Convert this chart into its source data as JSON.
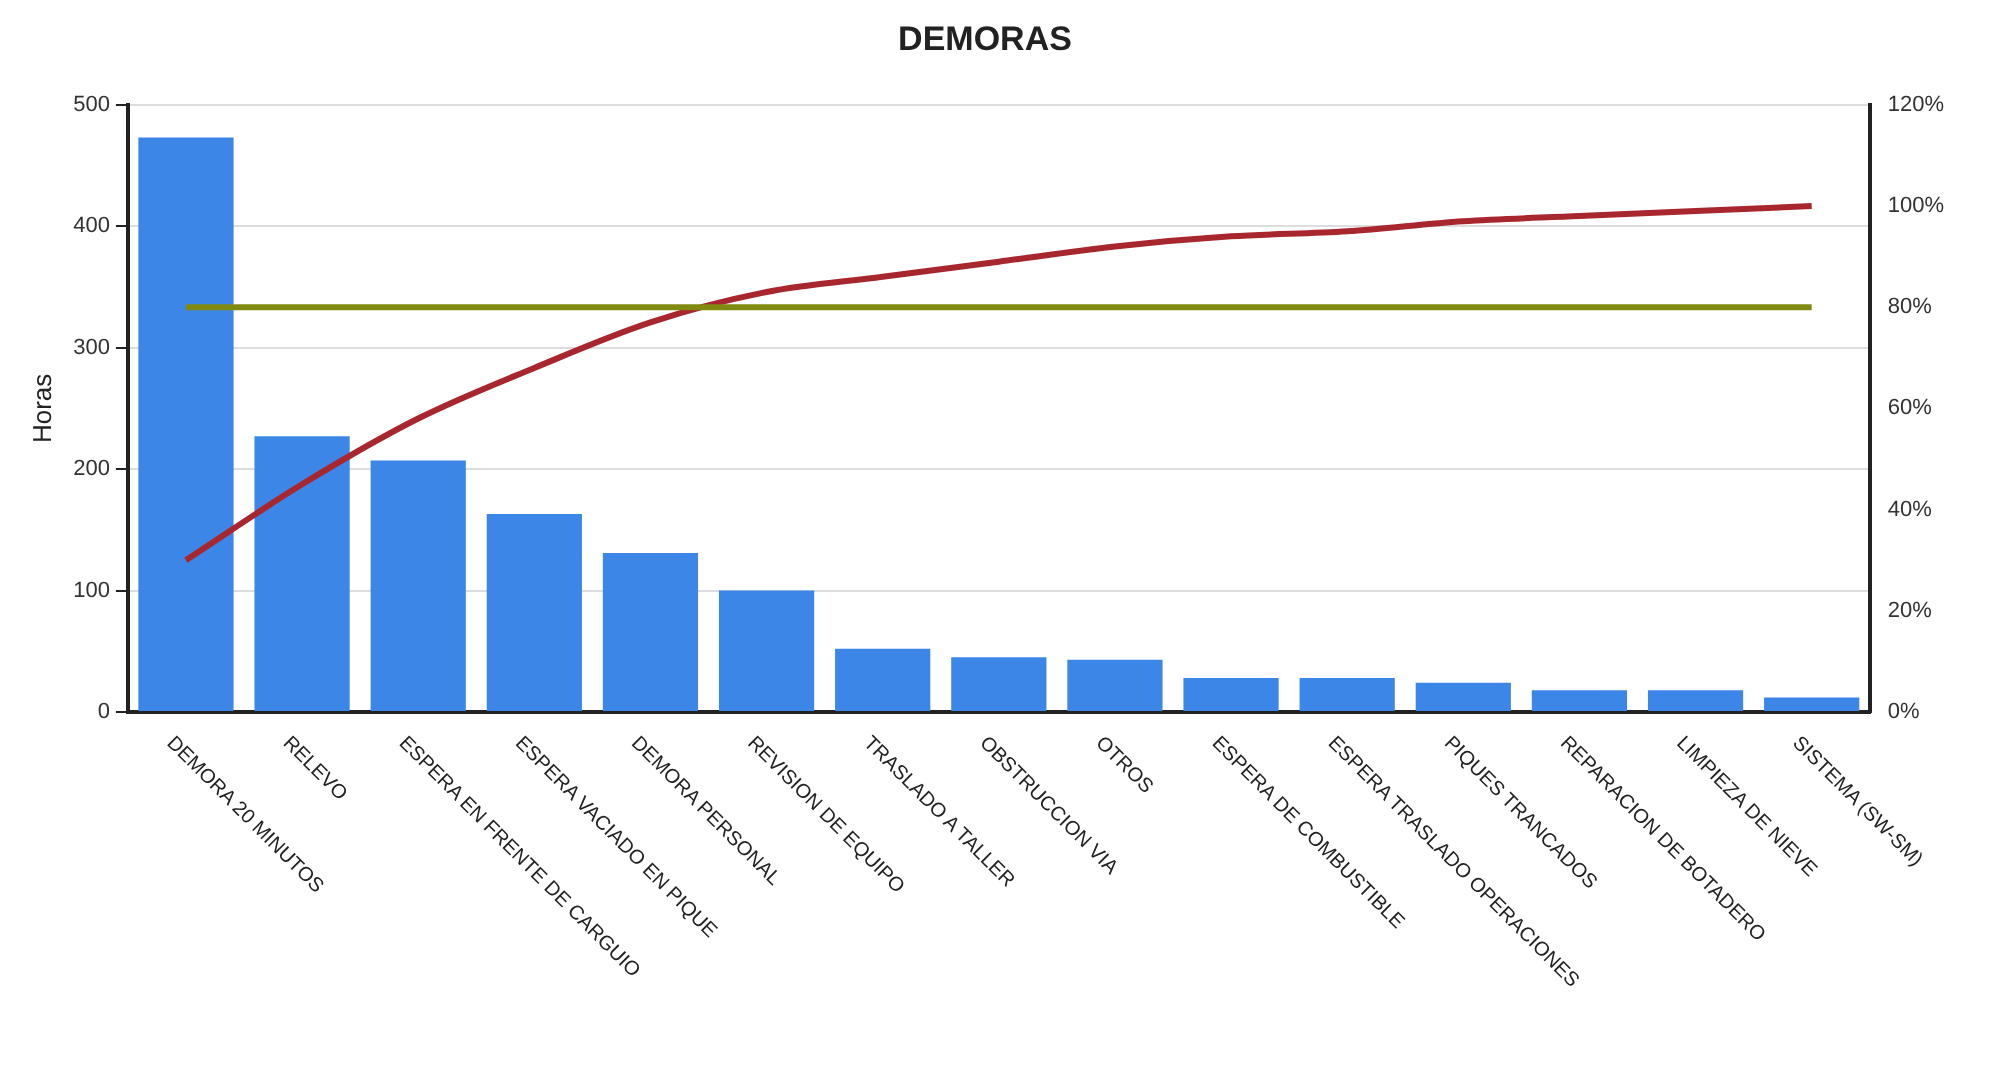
{
  "chart_data": {
    "type": "bar",
    "title": "DEMORAS",
    "ylabel": "Horas",
    "categories": [
      "DEMORA 20 MINUTOS",
      "RELEVO",
      "ESPERA EN FRENTE DE CARGUIO",
      "ESPERA VACIADO EN PIQUE",
      "DEMORA PERSONAL",
      "REVISION DE EQUIPO",
      "TRASLADO A TALLER",
      "OBSTRUCCION VIA",
      "OTROS",
      "ESPERA DE COMBUSTIBLE",
      "ESPERA TRASLADO OPERACIONES",
      "PIQUES TRANCADOS",
      "REPARACION DE BOTADERO",
      "LIMPIEZA DE NIEVE",
      "SISTEMA (SW-SM)"
    ],
    "series": [
      {
        "color": "#3c86e8",
        "values": [
          473,
          227,
          207,
          163,
          131,
          100,
          52,
          45,
          43,
          28,
          28,
          24,
          18,
          18,
          12
        ]
      },
      {
        "type": "line",
        "axis": "y2",
        "color": "#a8262e",
        "values": [
          30,
          45,
          58,
          68,
          77,
          83,
          86,
          89,
          92,
          94,
          95,
          97,
          98,
          99,
          100
        ]
      }
    ],
    "ylim": [
      0,
      500
    ],
    "yticks": [
      0,
      100,
      200,
      300,
      400,
      500
    ],
    "y2lim": [
      0,
      120
    ],
    "y2ticks": [
      {
        "value": 0,
        "label": "0%"
      },
      {
        "value": 20,
        "label": "20%"
      },
      {
        "value": 40,
        "label": "40%"
      },
      {
        "value": 60,
        "label": "60%"
      },
      {
        "value": 80,
        "label": "80%"
      },
      {
        "value": 100,
        "label": "100%"
      },
      {
        "value": 120,
        "label": "120%"
      }
    ],
    "ref_lines": [
      {
        "axis": "y2",
        "value": 80,
        "color": "#808a10"
      }
    ],
    "grid": "y",
    "legend": false,
    "marker": "none",
    "line_style": "solid"
  }
}
